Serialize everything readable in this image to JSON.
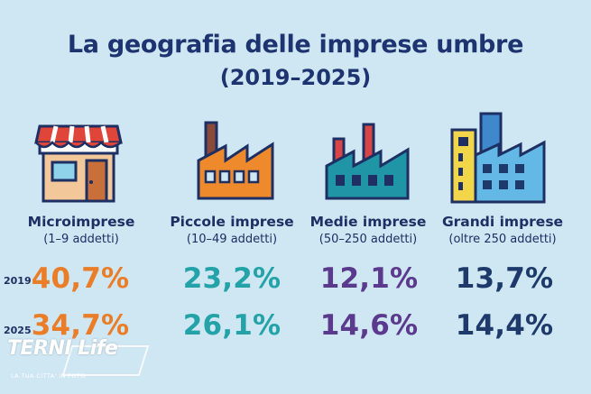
{
  "colors": {
    "background": "#cfe6f3",
    "micro": "#ea7d28",
    "piccole": "#23a3a8",
    "medie": "#5b3a8e",
    "grandi": "#1d3a6b"
  },
  "watermark": {
    "brand": "TERNI Life",
    "tagline": "LA TUA CITTA' IN FOTO"
  },
  "chart_data": {
    "type": "table",
    "title": "La geografia delle imprese umbre",
    "subtitle": "(2019–2025)",
    "years": [
      "2019",
      "2025"
    ],
    "categories": [
      {
        "name": "Microimprese",
        "range": "(1–9 addetti)",
        "icon": "shop-icon",
        "color": "#ea7d28"
      },
      {
        "name": "Piccole imprese",
        "range": "(10–49 addetti)",
        "icon": "small-factory-icon",
        "color": "#23a3a8"
      },
      {
        "name": "Medie imprese",
        "range": "(50–250 addetti)",
        "icon": "medium-factory-icon",
        "color": "#5b3a8e"
      },
      {
        "name": "Grandi imprese",
        "range": "(oltre 250 addetti)",
        "icon": "large-factory-icon",
        "color": "#1d3a6b"
      }
    ],
    "series": [
      {
        "name": "2019",
        "values": [
          40.7,
          23.2,
          12.1,
          13.7
        ],
        "labels": [
          "40,7%",
          "23,2%",
          "12,1%",
          "13,7%"
        ]
      },
      {
        "name": "2025",
        "values": [
          34.7,
          26.1,
          14.6,
          14.4
        ],
        "labels": [
          "34,7%",
          "26,1%",
          "14,6%",
          "14,4%"
        ]
      }
    ]
  }
}
